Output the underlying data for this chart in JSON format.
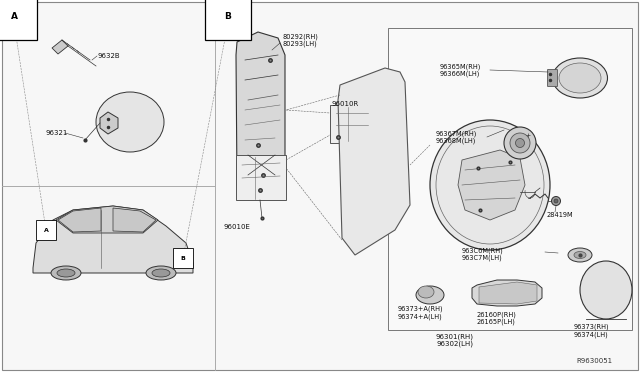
{
  "bg_color": "#ffffff",
  "line_color": "#333333",
  "ref_number": "R9630051",
  "parts": {
    "section_a": "A",
    "section_b": "B",
    "part_96328": "9632B",
    "part_96321": "96321",
    "part_80292": "80292(RH)\n80293(LH)",
    "part_9601R": "96010R",
    "part_9601E": "96010E",
    "part_96365": "96365M(RH)\n96366M(LH)",
    "part_96367": "96367M(RH)\n96368M(LH)",
    "part_28419": "28419M",
    "part_963C6": "963C6M(RH)\n963C7M(LH)",
    "part_96373a": "96373+A(RH)\n96374+A(LH)",
    "part_26160": "26160P(RH)\n26165P(LH)",
    "part_96301": "96301(RH)\n96302(LH)",
    "part_96373": "96373(RH)\n96374(LH)"
  }
}
